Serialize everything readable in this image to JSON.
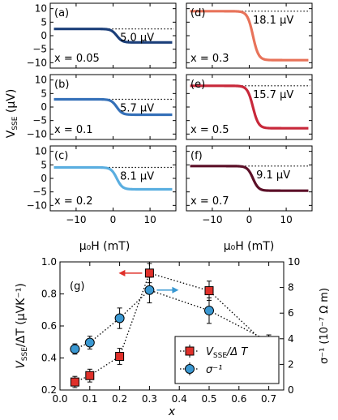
{
  "figure": {
    "y_axis_label_main": "V",
    "y_axis_label_sub": "SSE",
    "y_axis_label_unit": " (μV)",
    "x_axis_label": "μ₀H (mT)"
  },
  "chart_data": [
    {
      "panel": "(a)",
      "type": "line",
      "x_label": "x = 0.05",
      "annotation": "5.0 μV",
      "color": "#1b3f7a",
      "high": 2.5,
      "low": -2.5,
      "xlim": [
        -17,
        17
      ],
      "ylim": [
        -12,
        12
      ],
      "yticks": [
        10,
        5,
        0,
        -5,
        -10
      ],
      "xticks": [
        -10,
        0,
        10
      ]
    },
    {
      "panel": "(b)",
      "type": "line",
      "x_label": "x = 0.1",
      "annotation": "5.7 μV",
      "color": "#3470b8",
      "high": 2.85,
      "low": -2.85,
      "xlim": [
        -17,
        17
      ],
      "ylim": [
        -12,
        12
      ],
      "yticks": [
        10,
        5,
        0,
        -5,
        -10
      ],
      "xticks": [
        -10,
        0,
        10
      ]
    },
    {
      "panel": "(c)",
      "type": "line",
      "x_label": "x = 0.2",
      "annotation": "8.1 μV",
      "color": "#5aaee0",
      "high": 4.05,
      "low": -4.05,
      "xlim": [
        -17,
        17
      ],
      "ylim": [
        -12,
        12
      ],
      "yticks": [
        10,
        5,
        0,
        -5,
        -10
      ],
      "xticks": [
        -10,
        0,
        10
      ]
    },
    {
      "panel": "(d)",
      "type": "line",
      "x_label": "x = 0.3",
      "annotation": "18.1 μV",
      "color": "#e8735a",
      "high": 9.05,
      "low": -9.05,
      "xlim": [
        -17,
        17
      ],
      "ylim": [
        -12,
        12
      ],
      "yticks": [
        10,
        5,
        0,
        -5,
        -10
      ],
      "xticks": [
        -10,
        0,
        10
      ]
    },
    {
      "panel": "(e)",
      "type": "line",
      "x_label": "x = 0.5",
      "annotation": "15.7 μV",
      "color": "#c8283a",
      "high": 7.85,
      "low": -7.85,
      "xlim": [
        -17,
        17
      ],
      "ylim": [
        -12,
        12
      ],
      "yticks": [
        10,
        5,
        0,
        -5,
        -10
      ],
      "xticks": [
        -10,
        0,
        10
      ]
    },
    {
      "panel": "(f)",
      "type": "line",
      "x_label": "x = 0.7",
      "annotation": "9.1 μV",
      "color": "#5c1028",
      "high": 4.55,
      "low": -4.55,
      "xlim": [
        -17,
        17
      ],
      "ylim": [
        -12,
        12
      ],
      "yticks": [
        10,
        5,
        0,
        -5,
        -10
      ],
      "xticks": [
        -10,
        0,
        10
      ]
    },
    {
      "panel": "(g)",
      "type": "scatter",
      "x": [
        0.05,
        0.1,
        0.2,
        0.3,
        0.5,
        0.7
      ],
      "xlim": [
        0,
        0.75
      ],
      "xticks": [
        0.0,
        0.1,
        0.2,
        0.3,
        0.4,
        0.5,
        0.6,
        0.7
      ],
      "xlabel": "x",
      "ylabel_left_main": "V",
      "ylabel_left_sub": "SSE",
      "ylabel_left_rest": "/ΔT  (μVK⁻¹)",
      "ylim_left": [
        0.2,
        1.0
      ],
      "yticks_left": [
        0.2,
        0.4,
        0.6,
        0.8,
        1.0
      ],
      "ylabel_right": "σ⁻¹ (10⁻⁷ Ω m)",
      "ylim_right": [
        0,
        10
      ],
      "yticks_right": [
        0,
        2,
        4,
        6,
        8,
        10
      ],
      "series": [
        {
          "name_main": "V",
          "name_sub": "SSE",
          "name_rest": "/Δ T",
          "marker": "square",
          "color": "#e0302a",
          "axis": "left",
          "values": [
            0.25,
            0.29,
            0.41,
            0.93,
            0.82,
            0.47
          ],
          "errors": [
            0.035,
            0.04,
            0.05,
            0.06,
            0.06,
            0.04
          ]
        },
        {
          "name_main": "σ",
          "name_sub": "",
          "name_rest": "⁻¹",
          "marker": "circle",
          "color": "#3a98d2",
          "axis": "right",
          "values": [
            3.2,
            3.7,
            5.6,
            7.8,
            6.2,
            3.8
          ],
          "errors": [
            0.4,
            0.5,
            0.8,
            1.0,
            1.0,
            0.5
          ]
        }
      ]
    }
  ]
}
